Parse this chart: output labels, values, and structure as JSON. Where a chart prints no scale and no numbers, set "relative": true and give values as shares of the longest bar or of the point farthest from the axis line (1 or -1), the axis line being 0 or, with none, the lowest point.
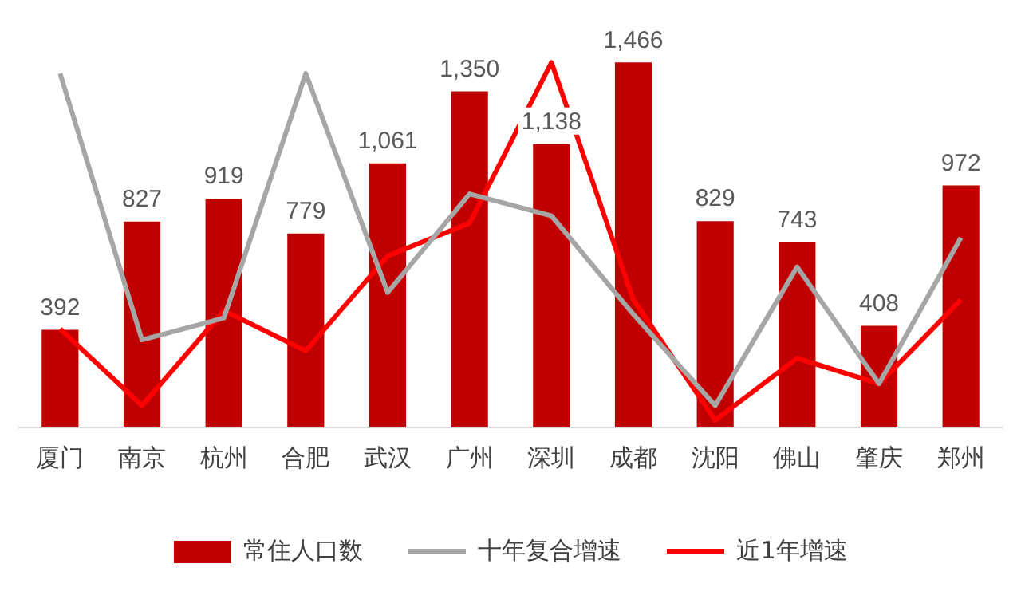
{
  "chart_data": [
    {
      "type": "bar",
      "legend": "bottom",
      "grid": false,
      "tick_labels": "x",
      "categories": [
        "厦门",
        "南京",
        "杭州",
        "合肥",
        "武汉",
        "广州",
        "深圳",
        "成都",
        "沈阳",
        "佛山",
        "肇庆",
        "郑州"
      ],
      "series": [
        {
          "name": "常住人口数",
          "color": "#c00000",
          "values": [
            392,
            827,
            919,
            779,
            1061,
            1350,
            1138,
            1466,
            829,
            743,
            408,
            972
          ],
          "value_labels": [
            "392",
            "827",
            "919",
            "779",
            "1,061",
            "1,350",
            "1,138",
            "1,466",
            "829",
            "743",
            "408",
            "972"
          ]
        }
      ]
    },
    {
      "type": "line",
      "relative": true,
      "legend": "bottom",
      "grid": false,
      "tick_labels": false,
      "categories": [
        null,
        null,
        null,
        null,
        null,
        null,
        null,
        null,
        null,
        null,
        null,
        null
      ],
      "series": [
        {
          "name": "十年复合增速",
          "color": "#a6a6a6",
          "values": [
            0.97,
            0.24,
            0.3,
            0.97,
            0.37,
            0.64,
            0.58,
            0.31,
            0.06,
            0.44,
            0.12,
            0.52
          ]
        },
        {
          "name": "近1年增速",
          "color": "#ff0000",
          "values": [
            0.27,
            0.06,
            0.32,
            0.21,
            0.47,
            0.56,
            1,
            0.35,
            0.02,
            0.19,
            0.12,
            0.35
          ]
        }
      ]
    }
  ]
}
